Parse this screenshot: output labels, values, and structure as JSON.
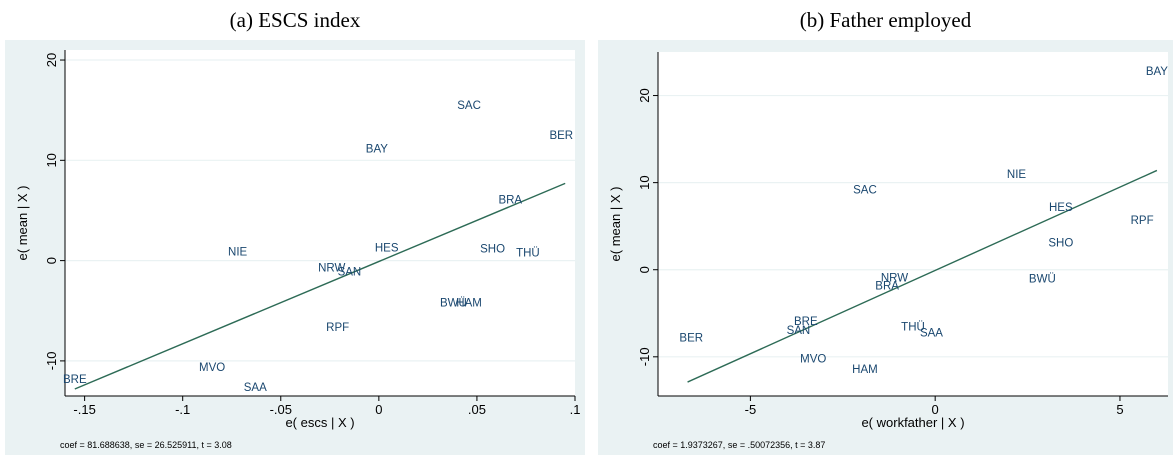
{
  "panels": [
    {
      "title": "(a) ESCS index",
      "xlabel": "e( escs | X )",
      "ylabel": "e( mean | X )",
      "note": "coef = 81.688638, se = 26.525911, t = 3.08",
      "xlim": [
        -0.16,
        0.1
      ],
      "ylim": [
        -13.5,
        21
      ],
      "xticks": [
        -0.15,
        -0.1,
        -0.05,
        0,
        0.05,
        0.1
      ],
      "xtick_labels": [
        "-.15",
        "-.1",
        "-.05",
        "0",
        ".05",
        ".1"
      ],
      "yticks": [
        -10,
        0,
        10,
        20
      ],
      "ytick_labels": [
        "-10",
        "0",
        "10",
        "20"
      ],
      "fit": [
        [
          -0.155,
          -12.8
        ],
        [
          0.095,
          7.7
        ]
      ],
      "points": [
        {
          "label": "SAC",
          "x": 0.046,
          "y": 15.5
        },
        {
          "label": "BER",
          "x": 0.093,
          "y": 12.5
        },
        {
          "label": "BAY",
          "x": -0.001,
          "y": 11.2
        },
        {
          "label": "BRA",
          "x": 0.067,
          "y": 6.1
        },
        {
          "label": "NIE",
          "x": -0.072,
          "y": 0.9
        },
        {
          "label": "HES",
          "x": 0.004,
          "y": 1.3
        },
        {
          "label": "SHO",
          "x": 0.058,
          "y": 1.2
        },
        {
          "label": "THÜ",
          "x": 0.076,
          "y": 0.8
        },
        {
          "label": "NRW",
          "x": -0.024,
          "y": -0.7
        },
        {
          "label": "SAN",
          "x": -0.015,
          "y": -1.1
        },
        {
          "label": "BWÜ",
          "x": 0.038,
          "y": -4.2
        },
        {
          "label": "HAM",
          "x": 0.046,
          "y": -4.2
        },
        {
          "label": "RPF",
          "x": -0.021,
          "y": -6.6
        },
        {
          "label": "MVO",
          "x": -0.085,
          "y": -10.6
        },
        {
          "label": "BRE",
          "x": -0.155,
          "y": -11.8
        },
        {
          "label": "SAA",
          "x": -0.063,
          "y": -12.6
        }
      ]
    },
    {
      "title": "(b) Father employed",
      "xlabel": "e( workfather | X )",
      "ylabel": "e( mean | X )",
      "note": "coef = 1.9373267, se = .50072356, t = 3.87",
      "xlim": [
        -7.5,
        6.3
      ],
      "ylim": [
        -14.5,
        25
      ],
      "xticks": [
        -5,
        0,
        5
      ],
      "xtick_labels": [
        "-5",
        "0",
        "5"
      ],
      "yticks": [
        -10,
        0,
        10,
        20
      ],
      "ytick_labels": [
        "-10",
        "0",
        "10",
        "20"
      ],
      "fit": [
        [
          -6.7,
          -12.9
        ],
        [
          6.0,
          11.4
        ]
      ],
      "points": [
        {
          "label": "BAY",
          "x": 6.0,
          "y": 22.8
        },
        {
          "label": "NIE",
          "x": 2.2,
          "y": 11.0
        },
        {
          "label": "SAC",
          "x": -1.9,
          "y": 9.2
        },
        {
          "label": "HES",
          "x": 3.4,
          "y": 7.2
        },
        {
          "label": "RPF",
          "x": 5.6,
          "y": 5.7
        },
        {
          "label": "SHO",
          "x": 3.4,
          "y": 3.1
        },
        {
          "label": "NRW",
          "x": -1.1,
          "y": -0.9
        },
        {
          "label": "BWÜ",
          "x": 2.9,
          "y": -1.0
        },
        {
          "label": "BRA",
          "x": -1.3,
          "y": -1.8
        },
        {
          "label": "BER",
          "x": -6.6,
          "y": -7.8
        },
        {
          "label": "BRE",
          "x": -3.5,
          "y": -5.9
        },
        {
          "label": "SAN",
          "x": -3.7,
          "y": -6.9
        },
        {
          "label": "THÜ",
          "x": -0.6,
          "y": -6.5
        },
        {
          "label": "SAA",
          "x": -0.1,
          "y": -7.2
        },
        {
          "label": "MVO",
          "x": -3.3,
          "y": -10.2
        },
        {
          "label": "HAM",
          "x": -1.9,
          "y": -11.4
        }
      ]
    }
  ]
}
